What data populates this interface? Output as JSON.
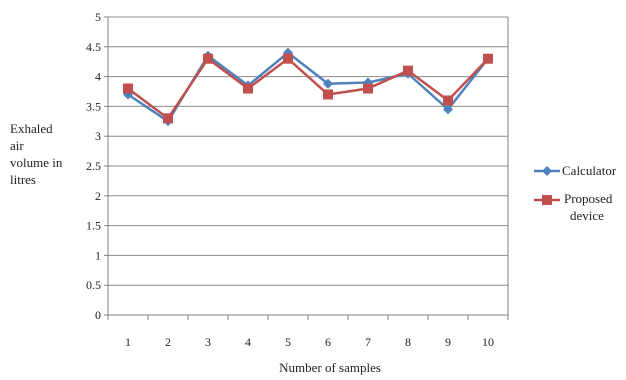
{
  "chart_data": {
    "type": "line",
    "title": "",
    "xlabel": "Number of samples",
    "ylabel": [
      "Exhaled",
      "air",
      "volume in",
      "litres"
    ],
    "categories": [
      "1",
      "2",
      "3",
      "4",
      "5",
      "6",
      "7",
      "8",
      "9",
      "10"
    ],
    "ylim": [
      0,
      5
    ],
    "yticks": [
      "0",
      "0.5",
      "1",
      "1.5",
      "2",
      "2.5",
      "3",
      "3.5",
      "4",
      "4.5",
      "5"
    ],
    "grid": "horizontal",
    "legend_position": "right",
    "series": [
      {
        "name": "Calculator",
        "marker": "diamond",
        "color": "#4f81bd",
        "values": [
          3.7,
          3.25,
          4.35,
          3.85,
          4.4,
          3.88,
          3.9,
          4.05,
          3.45,
          4.3
        ]
      },
      {
        "name": "Proposed device",
        "name_lines": [
          "Proposed",
          "device"
        ],
        "marker": "square",
        "color": "#c0504d",
        "values": [
          3.8,
          3.3,
          4.3,
          3.8,
          4.3,
          3.7,
          3.8,
          4.1,
          3.6,
          4.3
        ]
      }
    ]
  }
}
